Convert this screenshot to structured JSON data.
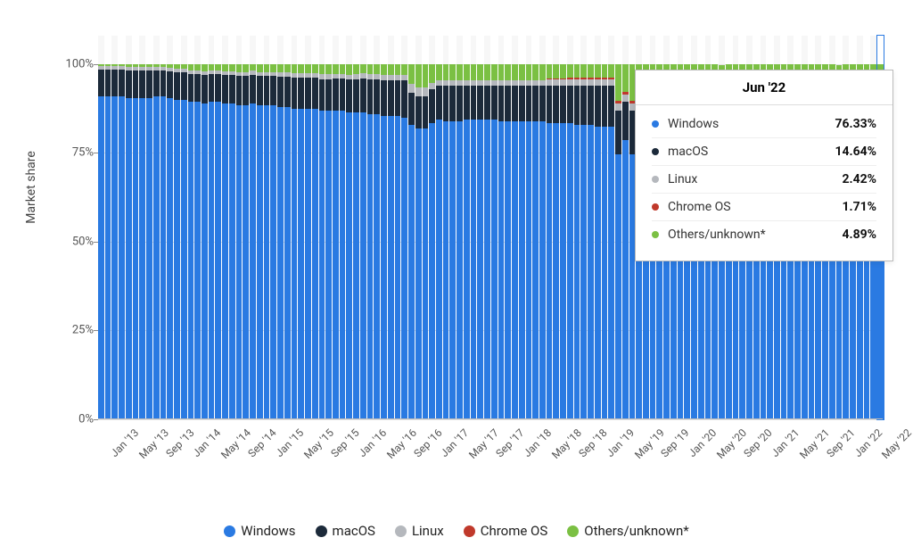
{
  "chart": {
    "type": "stacked-bar",
    "y_axis": {
      "label": "Market share",
      "ticks": [
        0,
        25,
        50,
        75,
        100
      ],
      "tick_suffix": "%",
      "ylim": [
        0,
        108
      ],
      "label_fontsize": 14,
      "tick_fontsize": 13,
      "grid_color": "#e0e0e0"
    },
    "background_color": "#ffffff",
    "alt_stripe_color": "#f7f7f7",
    "x_labels": [
      "Jan '13",
      "May '13",
      "Sep '13",
      "Jan '14",
      "May '14",
      "Sep '14",
      "Jan '15",
      "May '15",
      "Sep '15",
      "Jan '16",
      "May '16",
      "Sep '16",
      "Jan '17",
      "May '17",
      "Sep '17",
      "Jan '18",
      "May '18",
      "Sep '18",
      "Jan '19",
      "May '19",
      "Sep '19",
      "Jan '20",
      "May '20",
      "Sep '20",
      "Jan '21",
      "May '21",
      "Sep '21",
      "Jan '22",
      "May '22"
    ],
    "x_label_fontsize": 12,
    "series": [
      {
        "name": "Windows",
        "color": "#2a7ae2"
      },
      {
        "name": "macOS",
        "color": "#1c2a3a"
      },
      {
        "name": "Linux",
        "color": "#b5b8bd"
      },
      {
        "name": "Chrome OS",
        "color": "#c0392b"
      },
      {
        "name": "Others/unknown*",
        "color": "#7bc043"
      }
    ],
    "n_bars": 114,
    "highlight_index": 113,
    "values": {
      "windows": [
        91,
        91,
        91,
        91,
        90.5,
        90.5,
        90.5,
        90.5,
        91,
        91,
        90.5,
        90,
        90,
        89.5,
        89.5,
        89,
        89.5,
        89.5,
        89,
        89,
        88.5,
        88.5,
        89,
        88.5,
        88.5,
        88.5,
        88,
        88,
        87.5,
        87.5,
        87.5,
        87.5,
        87,
        87,
        87,
        87,
        86.5,
        86.5,
        86.5,
        86,
        86,
        85.5,
        85.5,
        85.5,
        85,
        83,
        82,
        82,
        83.5,
        84.5,
        84,
        84,
        84,
        84.5,
        84.5,
        84.5,
        84.5,
        84.5,
        84,
        84,
        84,
        84,
        84,
        84,
        84,
        83.5,
        83.5,
        83.5,
        83.5,
        83,
        83,
        83,
        82.5,
        82.5,
        82.5,
        74.5,
        78.5,
        74.5,
        78.5,
        74.5,
        75,
        70.5,
        78.5,
        79,
        78.5,
        78.5,
        78,
        78,
        78,
        78,
        77.5,
        77.5,
        77,
        77,
        77,
        77,
        77,
        77,
        77,
        76.5,
        76.5,
        76.5,
        76.5,
        76.5,
        76,
        76,
        76,
        76,
        76.5,
        76,
        76,
        76,
        76,
        76.33
      ],
      "macos": [
        7.5,
        7.5,
        7.5,
        7.5,
        7.7,
        7.7,
        7.7,
        7.8,
        7.3,
        7.3,
        7.5,
        7.7,
        7.7,
        7.8,
        7.8,
        8,
        7.8,
        7.8,
        8,
        8,
        8.2,
        8.2,
        8,
        8.2,
        8.2,
        8.2,
        8.5,
        8.5,
        8.7,
        8.7,
        8.7,
        8.7,
        8.8,
        8.8,
        9,
        9,
        9.2,
        9.3,
        9.5,
        9.7,
        9.8,
        10,
        10,
        10,
        10.5,
        9,
        9,
        9,
        9.5,
        9.5,
        10,
        10,
        10,
        9.5,
        9.5,
        9.5,
        9.5,
        9.5,
        10,
        10,
        10,
        10,
        10,
        10,
        10,
        10.5,
        10.5,
        10.5,
        10.5,
        11,
        11,
        11,
        11.5,
        11.5,
        11.5,
        12.5,
        11,
        12.5,
        11,
        12.5,
        12.5,
        12.5,
        12,
        13,
        13.5,
        13.5,
        14,
        14,
        14,
        14,
        14,
        14,
        14,
        14,
        14,
        14.2,
        14.2,
        14.2,
        14.3,
        14.3,
        14.3,
        14.5,
        14.5,
        14.5,
        14.5,
        14.5,
        14.5,
        14.6,
        14.6,
        14.6,
        14.6,
        14.6,
        14.6,
        14.64
      ],
      "linux": [
        1.0,
        1.0,
        1.0,
        1.0,
        1.0,
        1.0,
        1.0,
        1.0,
        1.0,
        1.0,
        1.0,
        1.0,
        1.0,
        1.0,
        1.0,
        1.0,
        1.0,
        1.0,
        1.0,
        1.0,
        1.1,
        1.1,
        1.1,
        1.1,
        1.1,
        1.1,
        1.2,
        1.2,
        1.2,
        1.2,
        1.2,
        1.2,
        1.3,
        1.3,
        1.3,
        1.3,
        1.3,
        1.3,
        1.4,
        1.4,
        1.4,
        1.4,
        1.5,
        1.5,
        1.5,
        2.5,
        2.5,
        2.5,
        1.8,
        1.5,
        1.5,
        1.5,
        1.5,
        1.5,
        1.5,
        1.5,
        1.5,
        1.5,
        1.5,
        1.5,
        1.5,
        1.5,
        1.5,
        1.5,
        1.5,
        1.7,
        1.7,
        1.7,
        1.7,
        1.7,
        1.7,
        1.7,
        1.8,
        1.8,
        1.8,
        2.0,
        2.0,
        2.0,
        2.0,
        2.0,
        2.0,
        2.0,
        2.0,
        2.0,
        2.0,
        2.0,
        2.0,
        2.0,
        2.1,
        2.1,
        2.1,
        2.1,
        2.2,
        2.2,
        2.2,
        2.2,
        2.2,
        2.3,
        2.3,
        2.3,
        2.3,
        2.3,
        2.3,
        2.4,
        2.4,
        2.4,
        2.4,
        2.4,
        2.4,
        2.4,
        2.4,
        2.4,
        2.4,
        2.42
      ],
      "chromeos": [
        0,
        0,
        0,
        0,
        0,
        0,
        0,
        0,
        0,
        0,
        0,
        0,
        0,
        0,
        0,
        0,
        0,
        0,
        0,
        0,
        0,
        0,
        0,
        0,
        0,
        0,
        0,
        0,
        0,
        0,
        0,
        0,
        0,
        0,
        0,
        0,
        0,
        0,
        0,
        0,
        0,
        0,
        0,
        0,
        0,
        0,
        0,
        0,
        0,
        0,
        0,
        0,
        0,
        0,
        0,
        0,
        0,
        0,
        0,
        0,
        0,
        0,
        0,
        0,
        0,
        0.3,
        0.3,
        0.3,
        0.4,
        0.4,
        0.4,
        0.4,
        0.5,
        0.5,
        0.5,
        0.6,
        0.6,
        0.6,
        0.7,
        0.7,
        0.7,
        0.8,
        0.8,
        0.9,
        0.9,
        0.9,
        1.0,
        1.0,
        1.0,
        1.1,
        1.1,
        1.2,
        1.2,
        1.3,
        1.3,
        1.3,
        1.4,
        1.4,
        1.4,
        1.5,
        1.5,
        1.5,
        1.5,
        1.6,
        1.6,
        1.6,
        1.6,
        1.6,
        1.7,
        1.7,
        1.7,
        1.7,
        1.7,
        1.71
      ],
      "others": [
        0.5,
        0.5,
        0.5,
        0.5,
        0.8,
        0.8,
        0.8,
        0.7,
        0.7,
        0.7,
        1.0,
        1.3,
        1.3,
        1.7,
        1.7,
        2.0,
        1.7,
        1.7,
        2.0,
        2.0,
        2.2,
        2.2,
        1.9,
        2.2,
        2.2,
        2.2,
        2.3,
        2.3,
        2.6,
        2.6,
        2.6,
        2.6,
        2.9,
        2.9,
        2.7,
        2.7,
        3.0,
        2.9,
        2.6,
        2.9,
        2.8,
        3.1,
        3.0,
        3.0,
        3.0,
        5.5,
        6.5,
        6.5,
        5.2,
        4.5,
        4.5,
        4.5,
        4.5,
        4.5,
        4.5,
        4.5,
        4.5,
        4.5,
        4.5,
        4.5,
        4.5,
        4.5,
        4.5,
        4.5,
        4.5,
        4.0,
        4.0,
        4.0,
        3.9,
        3.9,
        3.9,
        3.9,
        3.7,
        3.7,
        3.7,
        10.4,
        7.9,
        10.4,
        7.8,
        10.3,
        9.8,
        14.2,
        6.7,
        5.1,
        5.1,
        5.1,
        5.0,
        5.0,
        4.9,
        4.8,
        4.9,
        5.2,
        5.6,
        5.5,
        5.5,
        5.3,
        5.2,
        5.1,
        5.0,
        5.4,
        5.4,
        5.2,
        5.2,
        5.0,
        5.5,
        5.5,
        5.5,
        5.0,
        4.7,
        5.3,
        5.3,
        5.3,
        5.3,
        4.9
      ]
    }
  },
  "tooltip": {
    "title": "Jun '22",
    "rows": [
      {
        "name": "Windows",
        "value": "76.33%",
        "color": "#2a7ae2"
      },
      {
        "name": "macOS",
        "value": "14.64%",
        "color": "#1c2a3a"
      },
      {
        "name": "Linux",
        "value": "2.42%",
        "color": "#b5b8bd"
      },
      {
        "name": "Chrome OS",
        "value": "1.71%",
        "color": "#c0392b"
      },
      {
        "name": "Others/unknown*",
        "value": "4.89%",
        "color": "#7bc043"
      }
    ]
  },
  "legend_fontsize": 15
}
